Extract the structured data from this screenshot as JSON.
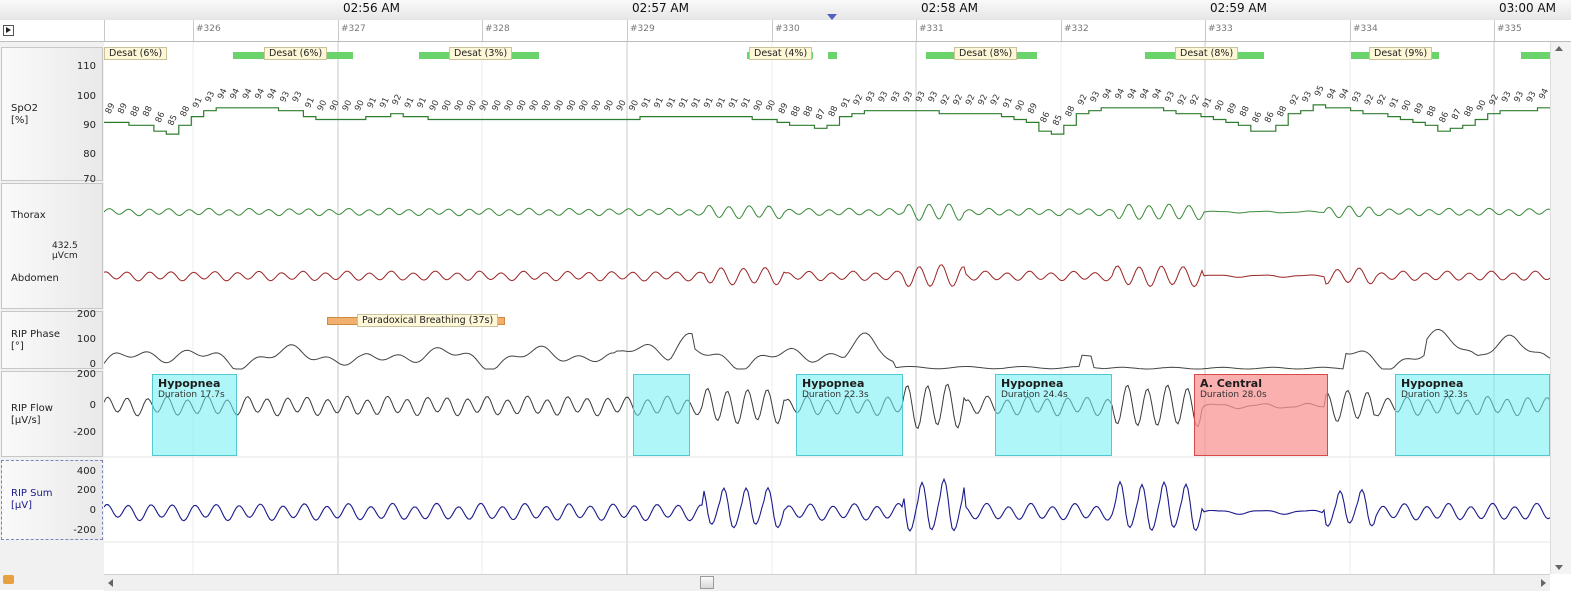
{
  "times": [
    "02:56 AM",
    "02:57 AM",
    "02:58 AM",
    "02:59 AM",
    "03:00 AM"
  ],
  "epochs": [
    "#326",
    "#327",
    "#328",
    "#329",
    "#330",
    "#331",
    "#332",
    "#333",
    "#334",
    "#335"
  ],
  "channels": {
    "spo2": {
      "name": "SpO2\n[%]",
      "ticks": [
        "110",
        "100",
        "90",
        "80",
        "70"
      ]
    },
    "thorax": {
      "name": "Thorax"
    },
    "scale": "432.5 µVcm",
    "abdomen": {
      "name": "Abdomen"
    },
    "phase": {
      "name": "RIP Phase\n[°]",
      "ticks": [
        "200",
        "100",
        "0"
      ]
    },
    "flow": {
      "name": "RIP Flow\n[µV/s]",
      "ticks": [
        "200",
        "0",
        "-200"
      ]
    },
    "sum": {
      "name": "RIP Sum\n[µV]",
      "ticks": [
        "400",
        "200",
        "0",
        "-200"
      ]
    }
  },
  "desat_tags": [
    "Desat (6%)",
    "Desat (6%)",
    "Desat (3%)",
    "Desat (4%)",
    "Desat (8%)",
    "Desat (8%)",
    "Desat (9%)"
  ],
  "paradoxical": "Paradoxical Breathing (37s)",
  "events": [
    {
      "title": "Hypopnea",
      "duration": "Duration 17.7s"
    },
    {
      "title": "",
      "duration": ""
    },
    {
      "title": "Hypopnea",
      "duration": "Duration 22.3s"
    },
    {
      "title": "Hypopnea",
      "duration": "Duration 24.4s"
    },
    {
      "title": "A. Central",
      "duration": "Duration 28.0s"
    },
    {
      "title": "Hypopnea",
      "duration": "Duration 32.3s"
    }
  ],
  "spo2_values": [
    89,
    89,
    88,
    88,
    86,
    85,
    88,
    91,
    93,
    94,
    94,
    94,
    94,
    94,
    93,
    93,
    91,
    90,
    90,
    90,
    90,
    91,
    91,
    92,
    91,
    91,
    90,
    90,
    90,
    90,
    90,
    90,
    90,
    90,
    90,
    90,
    90,
    90,
    90,
    90,
    90,
    90,
    90,
    91,
    91,
    91,
    91,
    91,
    91,
    91,
    91,
    91,
    90,
    90,
    89,
    88,
    88,
    87,
    88,
    91,
    92,
    93,
    93,
    93,
    93,
    93,
    93,
    92,
    92,
    92,
    92,
    92,
    91,
    90,
    89,
    86,
    85,
    88,
    92,
    93,
    94,
    94,
    94,
    94,
    94,
    93,
    92,
    92,
    91,
    90,
    89,
    88,
    86,
    86,
    88,
    92,
    93,
    95,
    94,
    94,
    93,
    92,
    92,
    91,
    90,
    89,
    88,
    86,
    87,
    88,
    90,
    92,
    93,
    93,
    93,
    94
  ],
  "colors": {
    "spo2": "#2e7d2e",
    "thorax": "#3a8a3a",
    "abdomen": "#9a2424",
    "phase": "#444444",
    "flow": "#3a3a3a",
    "sum": "#1a1a8c",
    "hypopnea": "#9ff4f6",
    "central": "#fbaaaa",
    "desat": "#6bd36b",
    "paradox": "#f2b070"
  }
}
